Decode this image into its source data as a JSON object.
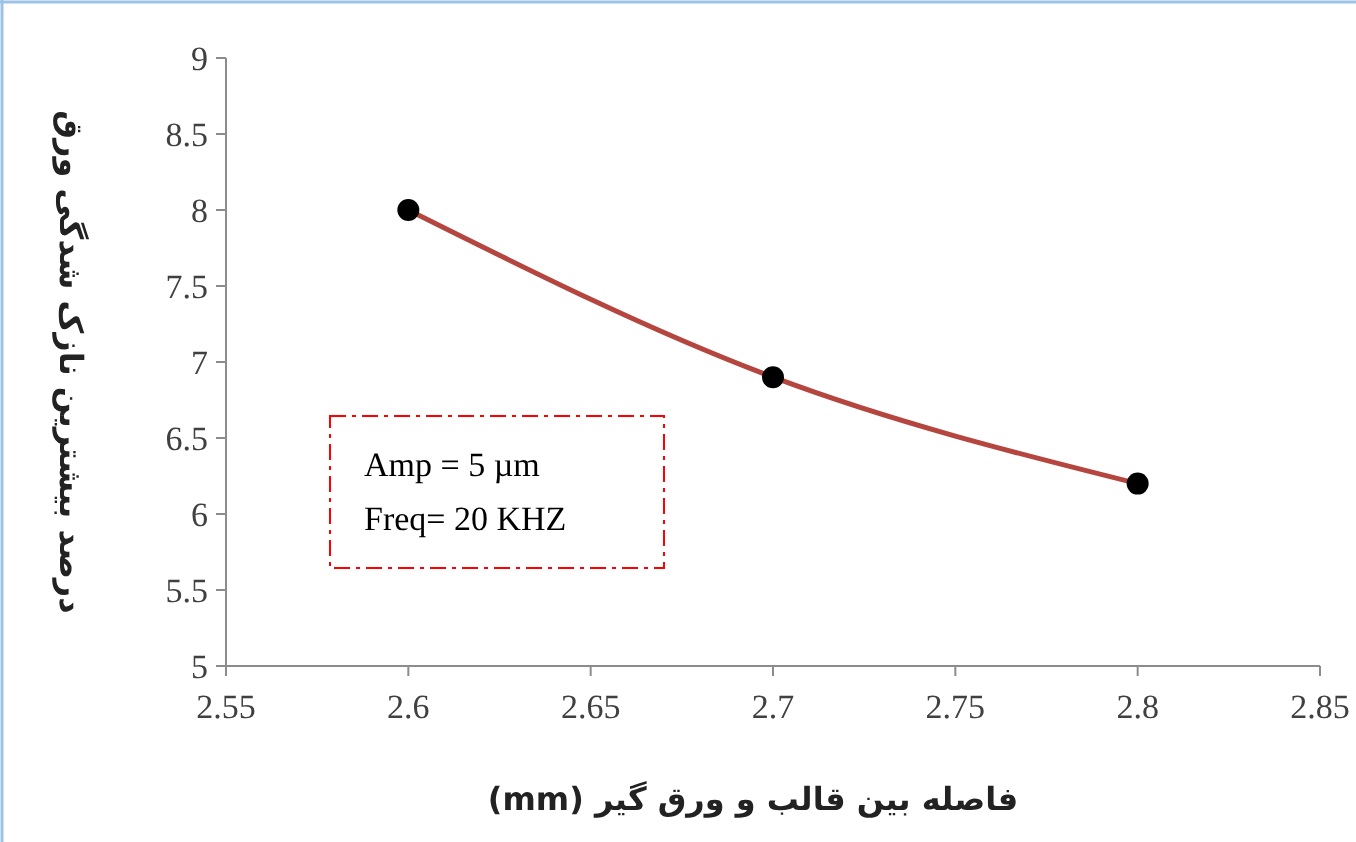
{
  "chart_data": {
    "type": "line",
    "xlabel": "فاصله بین قالب و ورق گیر (mm)",
    "ylabel": "درصد بیشترین نازک شدگی ورق",
    "x": [
      2.6,
      2.7,
      2.8
    ],
    "series": [
      {
        "color": "#b5453f",
        "values": [
          8.0,
          6.9,
          6.2
        ]
      }
    ],
    "xlim": [
      2.55,
      2.85
    ],
    "xticks": [
      2.55,
      2.6,
      2.65,
      2.7,
      2.75,
      2.8,
      2.85
    ],
    "ylim": [
      5,
      9
    ],
    "yticks": [
      5,
      5.5,
      6,
      6.5,
      7,
      7.5,
      8,
      8.5,
      9
    ],
    "grid": false,
    "marker": "circle",
    "line_style": "solid",
    "annotations": [
      "Amp = 5 µm",
      "Freq= 20 KHZ"
    ]
  }
}
